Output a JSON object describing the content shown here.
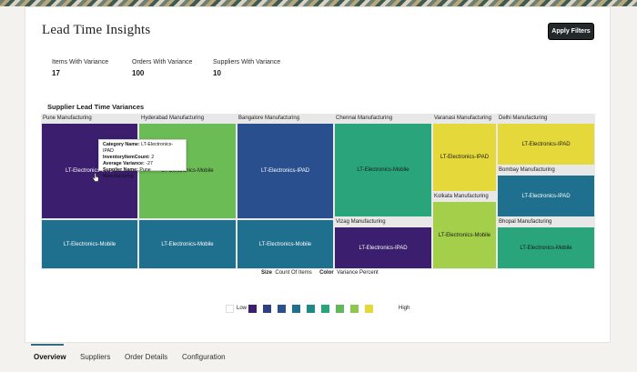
{
  "header": {
    "title": "Lead Time Insights",
    "apply_label": "Apply Filters"
  },
  "metrics": [
    {
      "label": "Items With Variance",
      "value": "17"
    },
    {
      "label": "Orders With Variance",
      "value": "100"
    },
    {
      "label": "Suppliers With Variance",
      "value": "10"
    }
  ],
  "treemap": {
    "title": "Supplier Lead Time Variances",
    "groups": {
      "pune": "Pune Manufacturing",
      "hyderabad": "Hyderabad Manufacturing",
      "bangalore": "Bangalore Manufacturing",
      "chennai": "Chennai Manufacturing",
      "vizag": "Vizag Manufacturing",
      "varanasi": "Varanasi Manufacturing",
      "kolkata": "Kolkata Manufacturing",
      "delhi": "Delhi Manufacturing",
      "bombay": "Bombay Manufacturing",
      "bhopal": "Bhopal Manufacturing"
    },
    "tiles": {
      "pune_ipad": "LT-Electronics-IPAD",
      "pune_mobile": "LT-Electronics-Mobile",
      "hyderabad_mobile_top": "LT-Electronics-Mobile",
      "hyderabad_mobile": "LT-Electronics-Mobile",
      "bangalore_ipad_top": "LT-Electronics-IPAD",
      "bangalore_mobile": "LT-Electronics-Mobile",
      "chennai_mobile": "LT-Electronics-Mobile",
      "vizag_ipad": "LT-Electronics-IPAD",
      "varanasi_ipad": "LT-Electronics-IPAD",
      "kolkata_mobile": "LT-Electronics-Mobile",
      "delhi_ipad": "LT-Electronics-IPAD",
      "bombay_ipad": "LT-Electronics-IPAD",
      "bhopal_mobile": "LT-Electronics-Mobile"
    },
    "tooltip": {
      "category_key": "Category Name:",
      "category_val": "LT-Electronics-IPAD",
      "count_key": "InventoryItemCount:",
      "count_val": "2",
      "variance_key": "Average Variance:",
      "variance_val": "-27",
      "supplier_key": "Supplier Name:",
      "supplier_val": "Pune Manufacturing"
    },
    "size_key": "Size",
    "size_val": "Count Of Items",
    "color_key": "Color",
    "color_val": "Variance Percent"
  },
  "legend": {
    "low": "Low",
    "high": "High",
    "colors": [
      "#ffffff",
      "#3b1f6e",
      "#2e3f86",
      "#2a4f8e",
      "#1f6f8e",
      "#1d8a84",
      "#2aa47a",
      "#5fb85a",
      "#8cc84b",
      "#e5d83a"
    ]
  },
  "colors": {
    "accent": "#2f6f7f",
    "button_bg": "#23282a"
  },
  "tabs": [
    {
      "label": "Overview"
    },
    {
      "label": "Suppliers"
    },
    {
      "label": "Order Details"
    },
    {
      "label": "Configuration"
    }
  ]
}
